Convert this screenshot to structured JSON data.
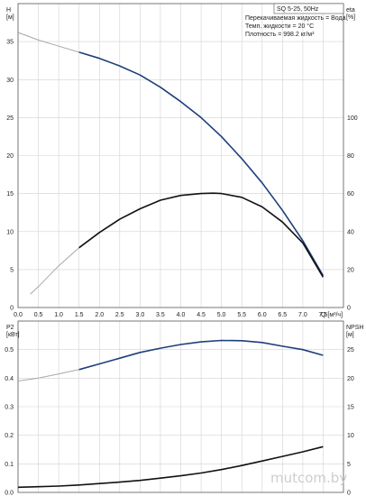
{
  "chart_data": [
    {
      "type": "line",
      "title": "SQ 5-25, 50Hz",
      "notes": [
        "Перекачиваемая жидкость = Вода",
        "Темп. жидкости = 20 °C",
        "Плотность = 998.2 кг/м³"
      ],
      "xlabel": "Q [м³/ч]",
      "ylabel": "H\n[м]",
      "y2label": "eta\n[%]",
      "xlim": [
        0,
        8
      ],
      "ylim": [
        0,
        40
      ],
      "y2lim": [
        0,
        160
      ],
      "x_ticks": [
        "0.0",
        "0.5",
        "1.0",
        "1.5",
        "2.0",
        "2.5",
        "3.0",
        "3.5",
        "4.0",
        "4.5",
        "5.0",
        "5.5",
        "6.0",
        "6.5",
        "7.0",
        "7.5"
      ],
      "y_ticks": [
        "0",
        "5",
        "10",
        "15",
        "20",
        "25",
        "30",
        "35"
      ],
      "y2_ticks": [
        "0",
        "20",
        "40",
        "60",
        "80",
        "100"
      ],
      "series": [
        {
          "axis": "left",
          "color": "#1d3f7a",
          "x": [
            0.0,
            0.5,
            1.0,
            1.5,
            2.0,
            2.5,
            3.0,
            3.5,
            4.0,
            4.5,
            5.0,
            5.5,
            6.0,
            6.5,
            7.0,
            7.5
          ],
          "y": [
            36.2,
            35.2,
            34.4,
            33.6,
            32.8,
            31.8,
            30.6,
            29.0,
            27.1,
            25.0,
            22.5,
            19.6,
            16.4,
            12.8,
            8.8,
            4.2
          ],
          "dashed_before": 1.5
        },
        {
          "axis": "right",
          "color": "#111111",
          "x": [
            0.3,
            0.5,
            1.0,
            1.5,
            2.0,
            2.5,
            3.0,
            3.5,
            4.0,
            4.5,
            4.8,
            5.0,
            5.5,
            6.0,
            6.5,
            7.0,
            7.5
          ],
          "y": [
            7,
            11,
            22,
            31.5,
            39.5,
            46.5,
            52,
            56.5,
            59,
            60,
            60.2,
            60,
            58,
            53,
            45,
            34,
            16
          ],
          "dashed_before": 1.5
        }
      ]
    },
    {
      "type": "line",
      "ylabel": "P2\n[кВт]",
      "y2label": "NPSH\n[м]",
      "xlim": [
        0,
        8
      ],
      "ylim": [
        0,
        0.6
      ],
      "y2lim": [
        0,
        30
      ],
      "y_ticks": [
        "0.0",
        "0.1",
        "0.2",
        "0.3",
        "0.4",
        "0.5"
      ],
      "y2_ticks": [
        "0",
        "5",
        "10",
        "15",
        "20",
        "25"
      ],
      "series": [
        {
          "axis": "left",
          "color": "#1d3f7a",
          "x": [
            0.0,
            0.5,
            1.0,
            1.5,
            2.0,
            2.5,
            3.0,
            3.5,
            4.0,
            4.5,
            5.0,
            5.5,
            6.0,
            6.5,
            7.0,
            7.5
          ],
          "y": [
            0.39,
            0.4,
            0.415,
            0.43,
            0.45,
            0.47,
            0.49,
            0.505,
            0.518,
            0.527,
            0.532,
            0.531,
            0.525,
            0.512,
            0.5,
            0.48
          ],
          "dashed_before": 1.5
        },
        {
          "axis": "right",
          "color": "#111111",
          "x": [
            0.0,
            0.5,
            1.0,
            1.5,
            2.0,
            2.5,
            3.0,
            3.5,
            4.0,
            4.5,
            5.0,
            5.5,
            6.0,
            6.5,
            7.0,
            7.5
          ],
          "y": [
            0.9,
            1.0,
            1.1,
            1.3,
            1.55,
            1.8,
            2.1,
            2.5,
            2.9,
            3.4,
            4.0,
            4.7,
            5.5,
            6.3,
            7.1,
            8.0
          ]
        }
      ]
    }
  ],
  "watermark": "mutcom.by"
}
